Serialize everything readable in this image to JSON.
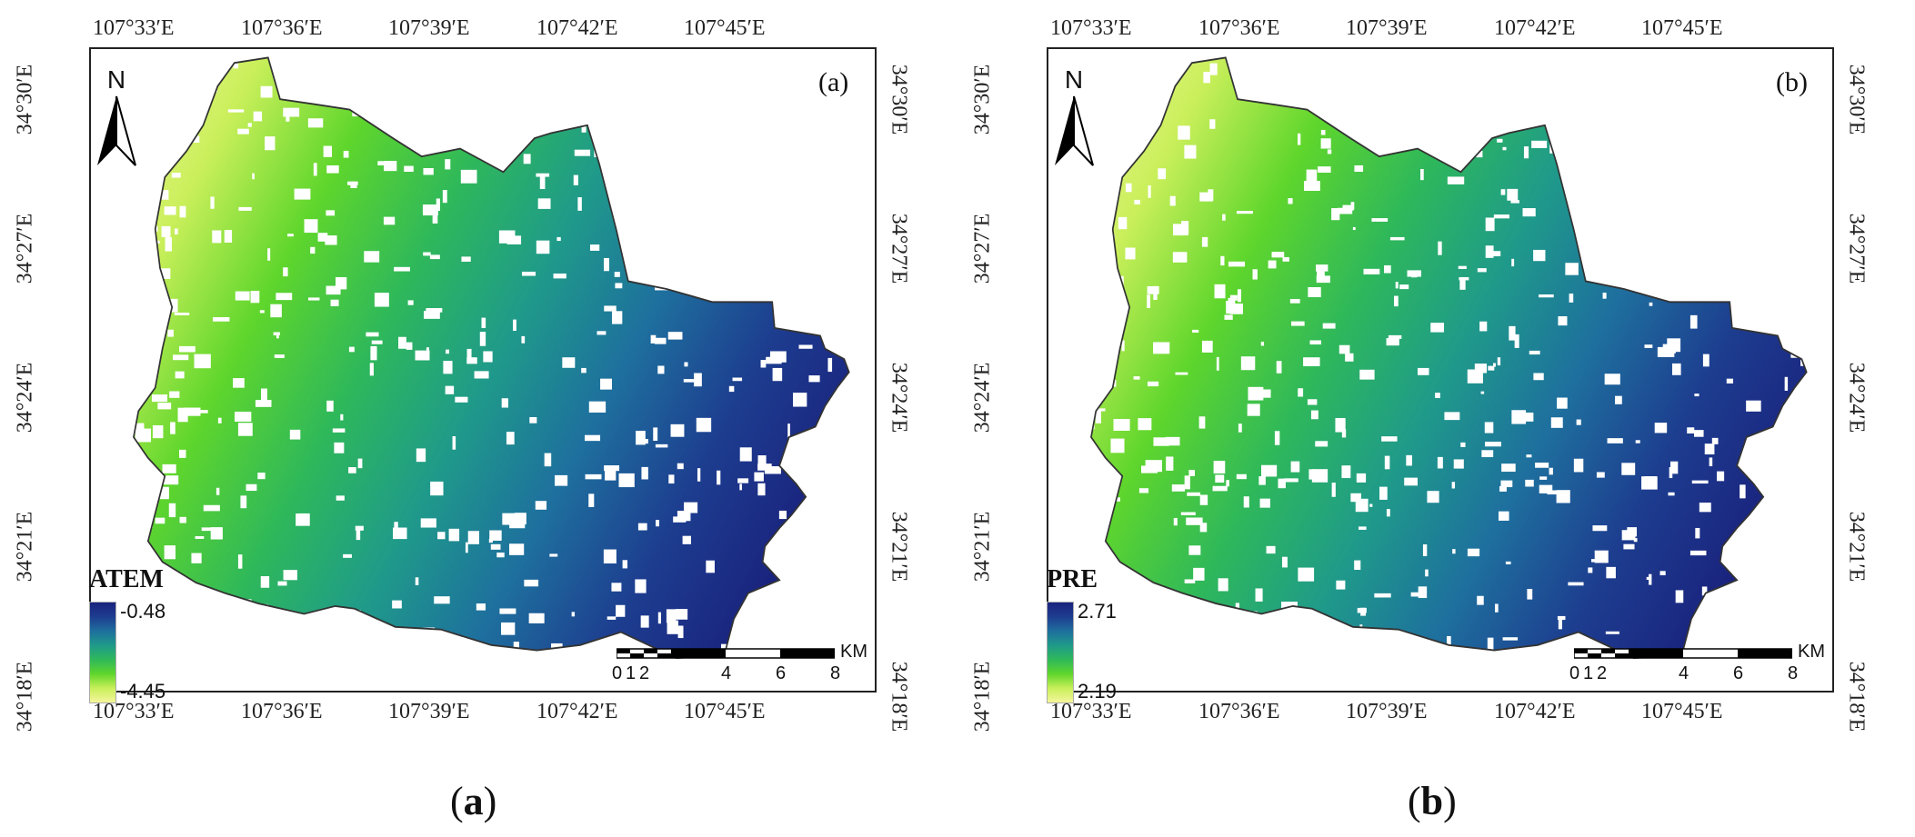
{
  "top_ticks": [
    "107°33′E",
    "107°36′E",
    "107°39′E",
    "107°42′E",
    "107°45′E"
  ],
  "bottom_ticks": [
    "107°33′E",
    "107°36′E",
    "107°39′E",
    "107°42′E",
    "107°45′E"
  ],
  "left_ticks": [
    "34°30′E",
    "34°27′E",
    "34°24′E",
    "34°21′E",
    "34°18′E"
  ],
  "right_ticks": [
    "34°30′E",
    "34°27′E",
    "34°24′E",
    "34°21′E",
    "34°18′E"
  ],
  "north_label": "N",
  "scale": {
    "labels": [
      "0",
      "1",
      "2",
      "4",
      "6",
      "8"
    ],
    "unit": "KM"
  },
  "panels": [
    {
      "letter": "(a)",
      "legend_title": "ATEM",
      "legend_max": "-0.48",
      "legend_min": "-4.45",
      "caption_open": "(",
      "caption_letter": "a",
      "caption_close": ")"
    },
    {
      "letter": "(b)",
      "legend_title": "PRE",
      "legend_max": "2.71",
      "legend_min": "2.19",
      "caption_open": "(",
      "caption_letter": "b",
      "caption_close": ")"
    }
  ],
  "colors": {
    "ramp": [
      "#f4f59a",
      "#c9ef5a",
      "#5fd62c",
      "#2fb85a",
      "#1f9a8a",
      "#1e6f9e",
      "#1d3d8f",
      "#1a237e"
    ],
    "boundary": "#333333",
    "frame": "#222222"
  }
}
